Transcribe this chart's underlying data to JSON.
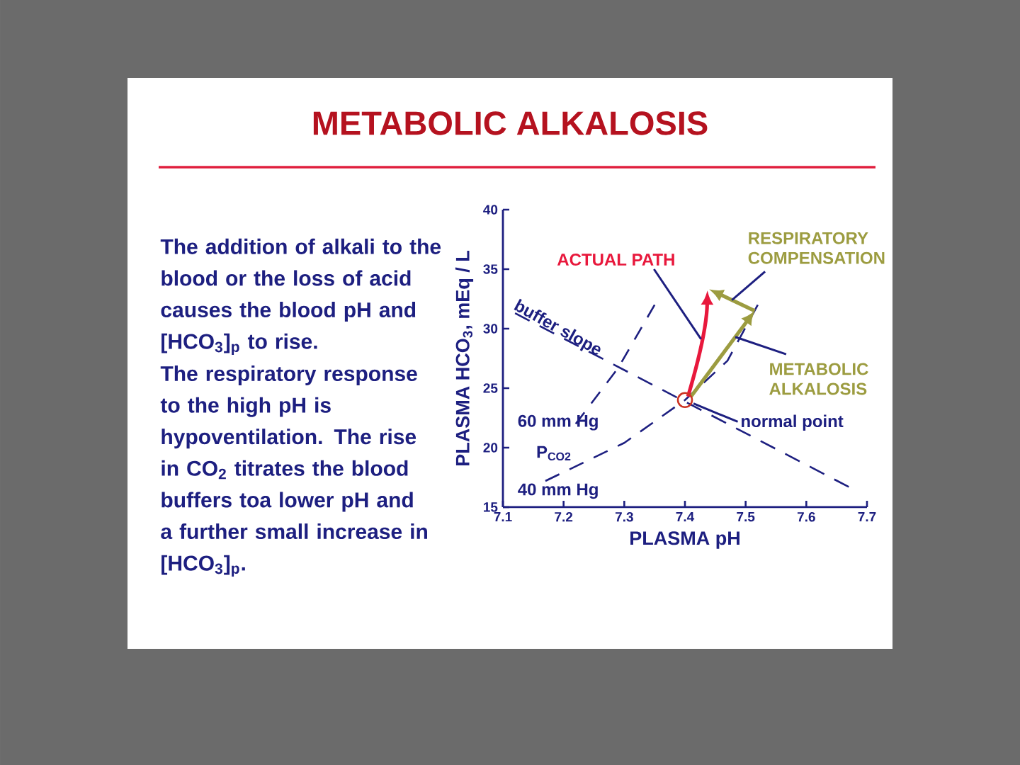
{
  "chart_data": {
    "type": "line",
    "title": "METABOLIC ALKALOSIS",
    "annotations": [
      "The addition of alkali to the blood or the loss of acid causes the blood pH and [HCO$_{3}$]$_{p}$ to rise.",
      "The respiratory response to the high pH is hypoventilation. The rise in CO$_{2}$ titrates the blood buffers toa lower pH and a further small increase in [HCO$_{3}$]$_{p}$.",
      "P$_{CO2}$",
      {
        "text": "normal point",
        "x": 7.4,
        "y": 24.0
      },
      "ACTUAL PATH",
      {
        "text": "METABOLIC ALKALOSIS",
        "x": 7.483,
        "y": 29.3
      },
      "RESPIRATORY COMPENSATION"
    ],
    "xlabel": "PLASMA pH",
    "ylabel": "PLASMA HCO$_{3}$, mEq / L",
    "xlim": [
      7.1,
      7.7
    ],
    "ylim": [
      15,
      40
    ],
    "xticks": [
      7.1,
      7.2,
      7.3,
      7.4,
      7.5,
      7.6,
      7.7
    ],
    "yticks": [
      15,
      20,
      25,
      30,
      35,
      40
    ],
    "series": [
      {
        "name": "buffer slope",
        "type": "line",
        "line_style": "dashed",
        "color": "#1d1f80",
        "x": [
          7.12,
          7.67
        ],
        "values": [
          31.3,
          16.7
        ]
      },
      {
        "name": "60 mm Hg",
        "type": "line",
        "line_style": "dashed",
        "color": "#1d1f80",
        "x": [
          7.22,
          7.29,
          7.35
        ],
        "values": [
          22.0,
          26.7,
          32.0
        ]
      },
      {
        "name": "40 mm Hg",
        "type": "line",
        "line_style": "dashed",
        "color": "#1d1f80",
        "x": [
          7.17,
          7.3,
          7.4,
          7.47,
          7.52
        ],
        "values": [
          17.2,
          20.4,
          24.0,
          27.3,
          32.0
        ]
      },
      {
        "type": "scatter",
        "marker": "circle",
        "color": "#cc3322",
        "x": [
          7.4
        ],
        "values": [
          24.0
        ]
      }
    ]
  }
}
